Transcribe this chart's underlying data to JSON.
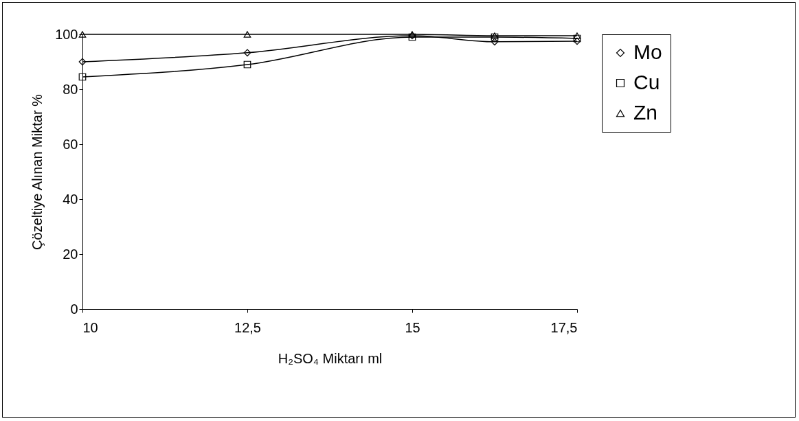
{
  "chart_data": {
    "type": "line",
    "xlabel": "H₂SO₄ Miktarı ml",
    "ylabel": "Çözeltiye Alınan Miktar %",
    "x": [
      10,
      12.5,
      15,
      16.25,
      17.5
    ],
    "series": [
      {
        "name": "Mo",
        "color": "#000000",
        "marker": "diamond",
        "values": [
          90,
          93.3,
          99.5,
          97.3,
          97.5
        ]
      },
      {
        "name": "Cu",
        "color": "#000000",
        "marker": "square",
        "values": [
          84.5,
          89,
          99,
          99,
          98.5
        ]
      },
      {
        "name": "Zn",
        "color": "#000000",
        "marker": "triangle",
        "values": [
          100,
          100,
          100,
          99.5,
          99.5
        ]
      }
    ],
    "xlim": [
      10,
      17.5
    ],
    "xticks": [
      10,
      {
        "value": 12.5,
        "label": "12,5"
      },
      15,
      {
        "value": 17.5,
        "label": "17,5"
      }
    ],
    "ylim": [
      0,
      100
    ],
    "yticks": [
      0,
      20,
      40,
      60,
      80,
      100
    ],
    "grid": false,
    "legend": "right",
    "line_style": "solid"
  }
}
